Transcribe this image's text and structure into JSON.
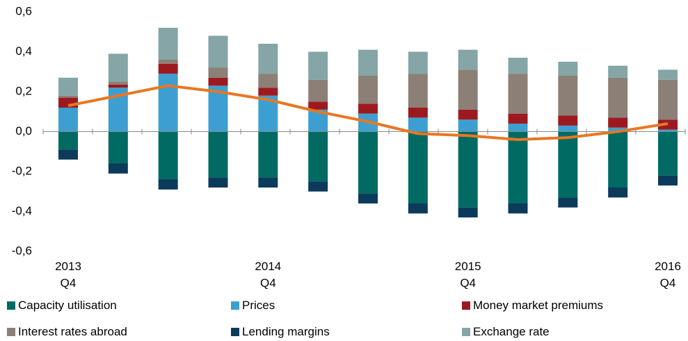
{
  "chart_data": {
    "type": "bar",
    "stacked": true,
    "categories": [
      "2013\nQ4",
      null,
      null,
      null,
      "2014\nQ4",
      null,
      null,
      null,
      "2015\nQ4",
      null,
      null,
      null,
      "2016\nQ4"
    ],
    "series": [
      {
        "name": "Capacity utilisation",
        "color": "#006a63",
        "values": [
          -0.09,
          -0.16,
          -0.24,
          -0.23,
          -0.23,
          -0.25,
          -0.31,
          -0.36,
          -0.38,
          -0.36,
          -0.33,
          -0.28,
          -0.22
        ]
      },
      {
        "name": "Prices",
        "color": "#3d9fd1",
        "values": [
          0.12,
          0.22,
          0.29,
          0.23,
          0.18,
          0.11,
          0.09,
          0.07,
          0.06,
          0.04,
          0.03,
          0.02,
          0.01
        ]
      },
      {
        "name": "Money market premiums",
        "color": "#9c1a1f",
        "values": [
          0.05,
          0.015,
          0.05,
          0.04,
          0.04,
          0.04,
          0.05,
          0.05,
          0.05,
          0.05,
          0.05,
          0.05,
          0.05
        ]
      },
      {
        "name": "Interest rates abroad",
        "color": "#8c7f76",
        "values": [
          0.01,
          0.015,
          0.02,
          0.05,
          0.07,
          0.11,
          0.14,
          0.17,
          0.2,
          0.2,
          0.2,
          0.2,
          0.2
        ]
      },
      {
        "name": "Lending margins",
        "color": "#0c3a5b",
        "values": [
          -0.05,
          -0.05,
          -0.05,
          -0.05,
          -0.05,
          -0.05,
          -0.05,
          -0.05,
          -0.05,
          -0.05,
          -0.05,
          -0.05,
          -0.05
        ]
      },
      {
        "name": "Exchange rate",
        "color": "#85a5a6",
        "values": [
          0.09,
          0.14,
          0.16,
          0.16,
          0.15,
          0.14,
          0.13,
          0.11,
          0.1,
          0.08,
          0.07,
          0.06,
          0.05
        ]
      }
    ],
    "line": {
      "type": "line",
      "color": "#e87722",
      "values": [
        0.13,
        0.18,
        0.23,
        0.2,
        0.16,
        0.1,
        0.05,
        -0.01,
        -0.02,
        -0.04,
        -0.03,
        0.0,
        0.04
      ]
    },
    "ylim": [
      -0.6,
      0.6
    ],
    "yticks": [
      {
        "value": -0.6,
        "label": "-0,6"
      },
      {
        "value": -0.4,
        "label": "-0,4"
      },
      {
        "value": -0.2,
        "label": "-0,2"
      },
      {
        "value": 0.0,
        "label": "0,0"
      },
      {
        "value": 0.2,
        "label": "0,2"
      },
      {
        "value": 0.4,
        "label": "0,4"
      },
      {
        "value": 0.6,
        "label": "0,6"
      }
    ],
    "grid": false
  }
}
